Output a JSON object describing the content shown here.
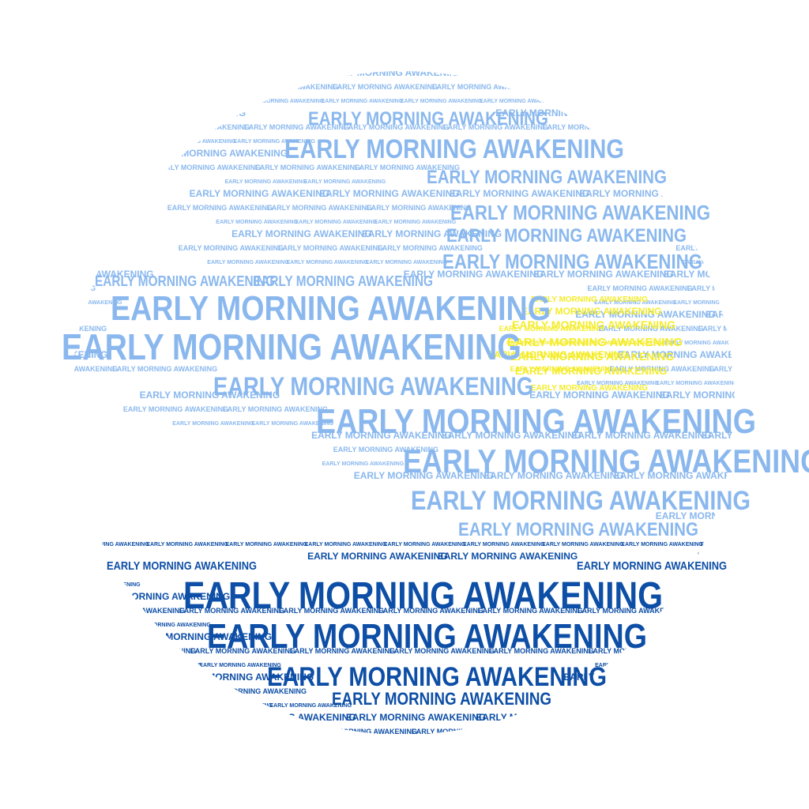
{
  "phrase": "EARLY MORNING AWAKENING",
  "colors": {
    "sky": "#8ab8ee",
    "sea": "#0d4ea6",
    "sun": "#f4ec2a",
    "cloud": "#ffffff",
    "background": "#ffffff"
  },
  "regions": [
    "sky",
    "sun",
    "sea"
  ]
}
